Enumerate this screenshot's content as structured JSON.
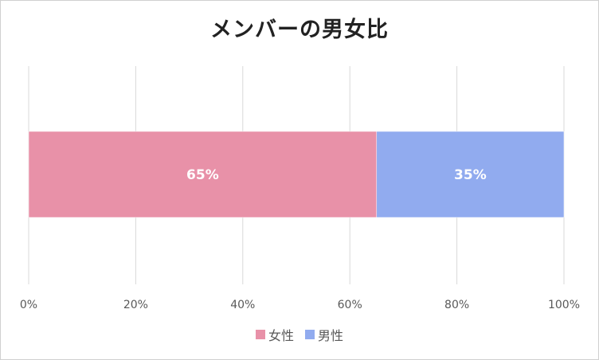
{
  "chart_data": {
    "type": "bar",
    "orientation": "horizontal",
    "stacked": true,
    "title": "メンバーの男女比",
    "categories": [
      ""
    ],
    "series": [
      {
        "name": "女性",
        "values": [
          65
        ],
        "label": "65%",
        "color": "#e891a8"
      },
      {
        "name": "男性",
        "values": [
          35
        ],
        "label": "35%",
        "color": "#91abef"
      }
    ],
    "xlim": [
      0,
      100
    ],
    "xticks": [
      0,
      20,
      40,
      60,
      80,
      100
    ],
    "xtick_labels": [
      "0%",
      "20%",
      "40%",
      "60%",
      "80%",
      "100%"
    ],
    "grid": true,
    "legend": "bottom"
  }
}
